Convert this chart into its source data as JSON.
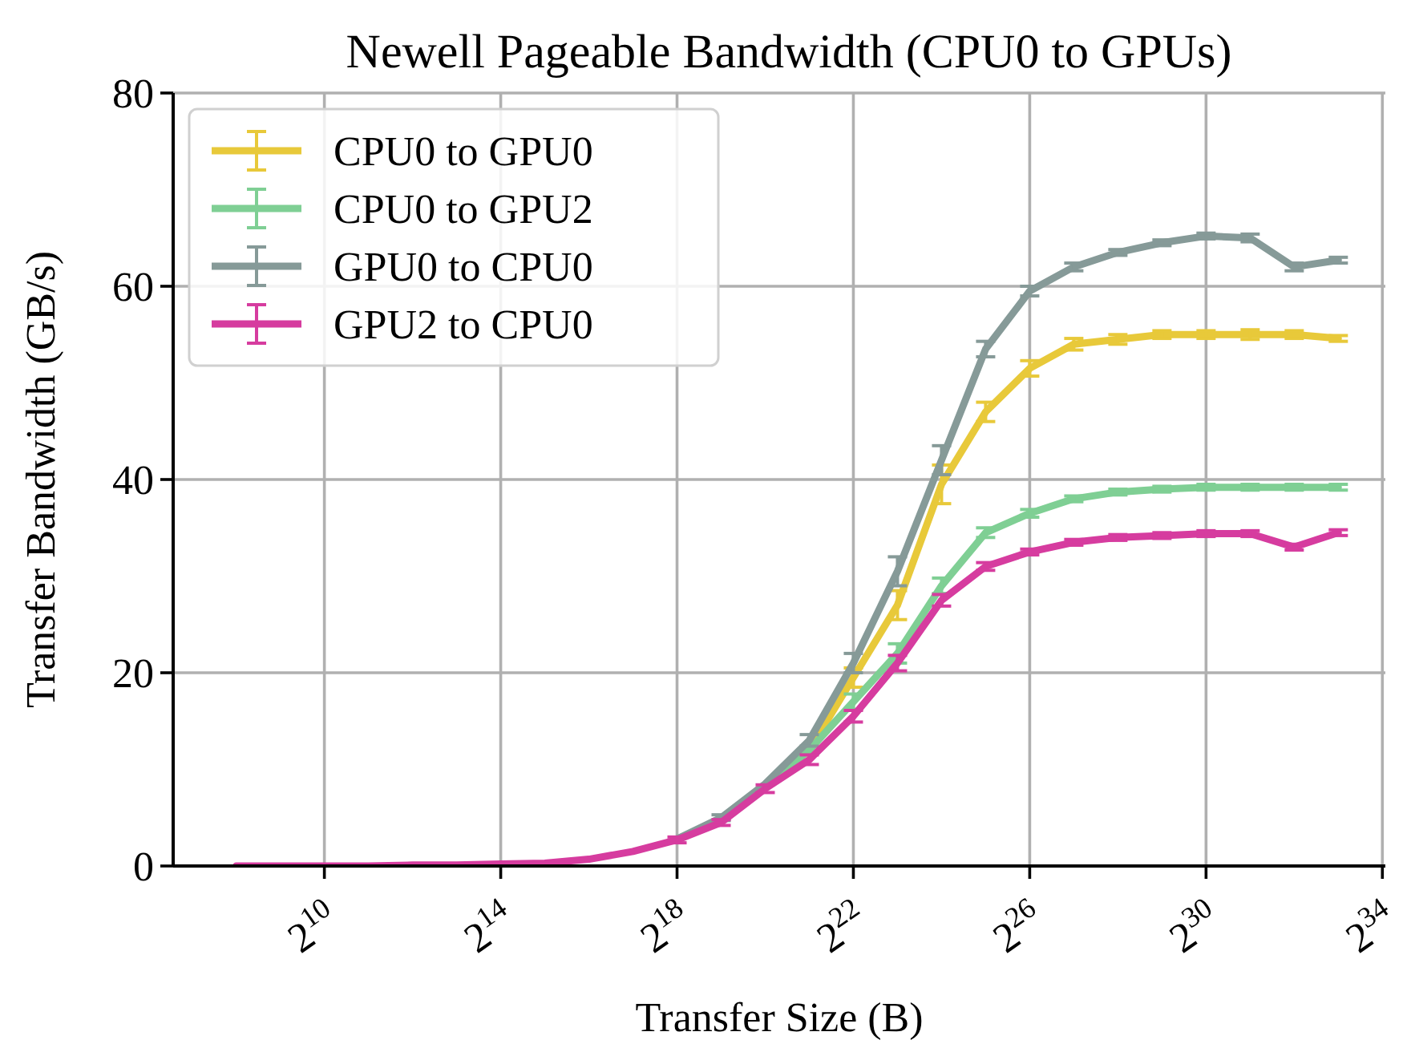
{
  "chart_data": {
    "type": "line",
    "title": "Newell Pageable Bandwidth (CPU0 to GPUs)",
    "xlabel": "Transfer Size (B)",
    "ylabel": "Transfer Bandwidth (GB/s)",
    "log": "x",
    "x": [
      256,
      512,
      1024,
      2048,
      4096,
      8192,
      16384,
      32768,
      65536,
      131072,
      262144,
      524288,
      1048576,
      2097152,
      4194304,
      8388608,
      16777216,
      33554432,
      67108864,
      134217728,
      268435456,
      536870912,
      1073741824,
      2147483648,
      4294967296,
      8589934592
    ],
    "xlim": [
      95,
      18000000000
    ],
    "xticks": [
      {
        "value": 1024,
        "label": "2$^{10}$"
      },
      {
        "value": 16384,
        "label": "2$^{14}$"
      },
      {
        "value": 262144,
        "label": "2$^{18}$"
      },
      {
        "value": 4194304,
        "label": "2$^{22}$"
      },
      {
        "value": 67108864,
        "label": "2$^{26}$"
      },
      {
        "value": 1073741824,
        "label": "2$^{30}$"
      },
      {
        "value": 17179869184,
        "label": "2$^{34}$"
      }
    ],
    "ylim": [
      0,
      80
    ],
    "yticks": [
      0,
      20,
      40,
      60,
      80
    ],
    "grid": true,
    "legend": "top left",
    "series": [
      {
        "name": "CPU0 to GPU0",
        "color": "#e8c93a",
        "values": [
          null,
          null,
          null,
          null,
          null,
          null,
          null,
          null,
          null,
          null,
          null,
          null,
          8.3,
          12,
          19.5,
          27,
          39.5,
          47,
          51.5,
          54,
          54.5,
          55,
          55,
          55,
          55,
          54.6
        ],
        "errors": [
          null,
          null,
          null,
          null,
          null,
          null,
          null,
          null,
          null,
          null,
          null,
          null,
          null,
          null,
          1,
          1.5,
          2,
          1,
          0.8,
          0.6,
          0.5,
          0.4,
          0.4,
          0.5,
          0.4,
          0.3
        ]
      },
      {
        "name": "CPU0 to GPU2",
        "color": "#7fcf94",
        "values": [
          null,
          null,
          null,
          null,
          null,
          null,
          null,
          null,
          null,
          null,
          2.8,
          4.6,
          8.2,
          12,
          17,
          22,
          29,
          34.5,
          36.5,
          38,
          38.7,
          39,
          39.2,
          39.2,
          39.2,
          39.2
        ],
        "errors": [
          null,
          null,
          null,
          null,
          null,
          null,
          null,
          null,
          null,
          null,
          null,
          null,
          null,
          null,
          0.8,
          1,
          0.8,
          0.5,
          0.4,
          0.3,
          0.3,
          0.3,
          0.3,
          0.3,
          0.3,
          0.3
        ]
      },
      {
        "name": "GPU0 to CPU0",
        "color": "#869a98",
        "values": [
          null,
          null,
          null,
          null,
          null,
          null,
          null,
          null,
          null,
          null,
          2.8,
          5,
          8.5,
          13,
          21,
          30.5,
          42,
          53.5,
          59.5,
          62,
          63.5,
          64.5,
          65.2,
          65,
          62,
          62.7
        ],
        "errors": [
          null,
          null,
          null,
          null,
          null,
          null,
          null,
          null,
          null,
          null,
          null,
          0.3,
          null,
          0.6,
          1,
          1.5,
          1.5,
          0.8,
          0.5,
          0.4,
          0.3,
          0.3,
          0.3,
          0.4,
          0.4,
          0.3
        ]
      },
      {
        "name": "GPU2 to CPU0",
        "color": "#d63c9f",
        "values": [
          0,
          0,
          0,
          0,
          0.1,
          0.1,
          0.2,
          0.3,
          0.7,
          1.5,
          2.7,
          4.5,
          8,
          11,
          15.5,
          21,
          27.5,
          31,
          32.5,
          33.5,
          34,
          34.2,
          34.4,
          34.4,
          33,
          34.5
        ],
        "errors": [
          null,
          null,
          null,
          null,
          null,
          null,
          null,
          null,
          null,
          null,
          0.3,
          0.3,
          0.4,
          0.5,
          0.6,
          0.8,
          0.6,
          0.4,
          0.3,
          0.3,
          0.3,
          0.3,
          0.3,
          0.3,
          0.3,
          0.3
        ]
      }
    ]
  }
}
